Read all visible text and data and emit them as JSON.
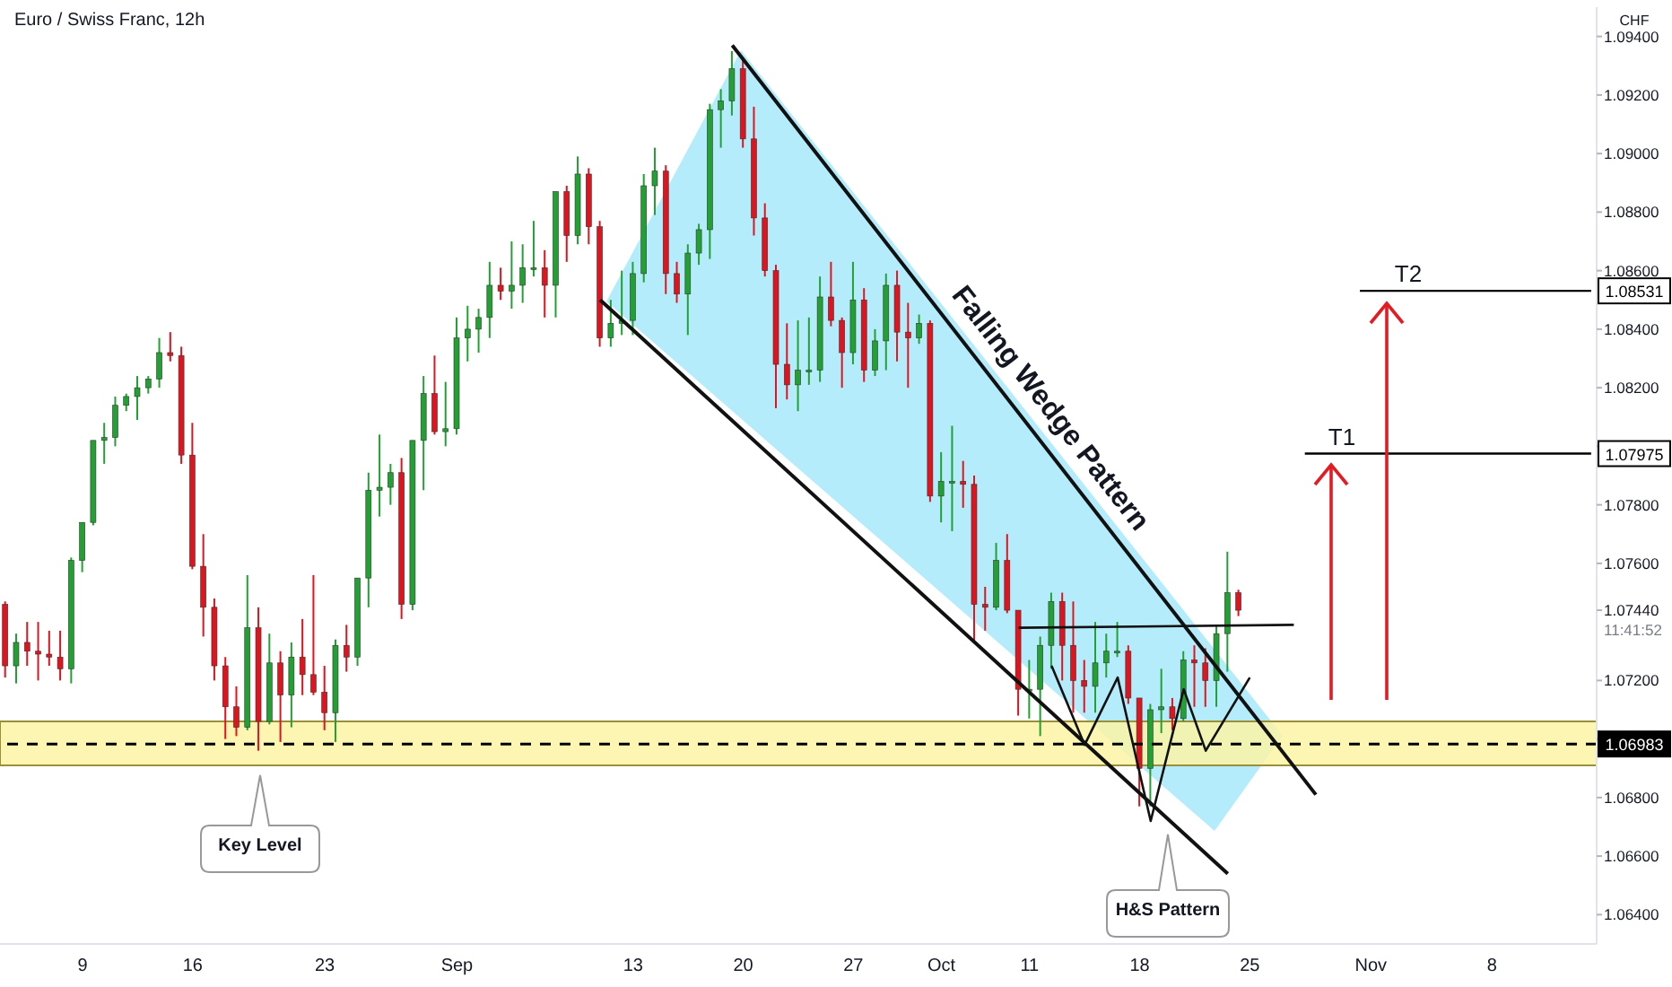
{
  "chart_data": {
    "type": "candlestick",
    "title": "Euro / Swiss Franc, 12h",
    "ylabel": "CHF",
    "categories": [
      null,
      null,
      null,
      null,
      null,
      null,
      null,
      "9",
      null,
      null,
      null,
      null,
      null,
      null,
      null,
      null,
      null,
      "16",
      null,
      null,
      null,
      null,
      null,
      null,
      null,
      null,
      null,
      null,
      null,
      "23",
      null,
      null,
      null,
      null,
      null,
      null,
      null,
      null,
      null,
      null,
      null,
      "Sep",
      null,
      null,
      null,
      null,
      null,
      null,
      null,
      null,
      null,
      null,
      null,
      null,
      null,
      null,
      null,
      "13",
      null,
      null,
      null,
      null,
      null,
      null,
      null,
      null,
      null,
      "20",
      null,
      null,
      null,
      null,
      null,
      null,
      null,
      null,
      null,
      "27",
      null,
      null,
      null,
      null,
      null,
      null,
      null,
      "Oct",
      null,
      null,
      null,
      null,
      null,
      null,
      null,
      "11",
      null,
      null,
      null,
      null,
      null,
      null,
      null,
      null,
      null,
      "18",
      null,
      null,
      null,
      null,
      null,
      null,
      null,
      null,
      null,
      "25",
      null,
      null,
      null,
      null,
      null,
      null,
      null,
      null,
      null,
      null,
      "Nov",
      null,
      null,
      null,
      null,
      null,
      null,
      null,
      null,
      null,
      null,
      "8",
      null,
      null,
      null,
      null,
      null,
      null,
      null,
      null,
      null
    ],
    "ohlc": [
      [
        1.0746,
        1.0747,
        1.0721,
        1.0725
      ],
      [
        1.0725,
        1.0736,
        1.0719,
        1.0733
      ],
      [
        1.0733,
        1.074,
        1.0725,
        1.073
      ],
      [
        1.073,
        1.074,
        1.072,
        1.0729
      ],
      [
        1.0729,
        1.0737,
        1.0725,
        1.0728
      ],
      [
        1.0728,
        1.0737,
        1.072,
        1.0724
      ],
      [
        1.0724,
        1.0762,
        1.0719,
        1.0761
      ],
      [
        1.0761,
        1.0774,
        1.0757,
        1.0774
      ],
      [
        1.0774,
        1.0802,
        1.0773,
        1.0802
      ],
      [
        1.0802,
        1.0808,
        1.0794,
        1.0803
      ],
      [
        1.0803,
        1.0817,
        1.08,
        1.0814
      ],
      [
        1.0814,
        1.0818,
        1.0812,
        1.0817
      ],
      [
        1.0817,
        1.0824,
        1.0809,
        1.082
      ],
      [
        1.082,
        1.0824,
        1.0818,
        1.0823
      ],
      [
        1.0823,
        1.0837,
        1.082,
        1.0832
      ],
      [
        1.0832,
        1.0839,
        1.0829,
        1.0831
      ],
      [
        1.0831,
        1.0834,
        1.0794,
        1.0797
      ],
      [
        1.0797,
        1.0808,
        1.0758,
        1.0759
      ],
      [
        1.0759,
        1.077,
        1.0735,
        1.0745
      ],
      [
        1.0745,
        1.0748,
        1.072,
        1.0725
      ],
      [
        1.0725,
        1.0728,
        1.07,
        1.0711
      ],
      [
        1.0711,
        1.0718,
        1.0701,
        1.0704
      ],
      [
        1.0704,
        1.0756,
        1.0703,
        1.0738
      ],
      [
        1.0738,
        1.0745,
        1.0696,
        1.0706
      ],
      [
        1.0706,
        1.0736,
        1.0705,
        1.0726
      ],
      [
        1.0726,
        1.073,
        1.0699,
        1.0715
      ],
      [
        1.0715,
        1.0733,
        1.0704,
        1.0728
      ],
      [
        1.0728,
        1.0741,
        1.0715,
        1.0722
      ],
      [
        1.0722,
        1.0756,
        1.0715,
        1.0716
      ],
      [
        1.0716,
        1.0725,
        1.0703,
        1.0709
      ],
      [
        1.0709,
        1.0734,
        1.0699,
        1.0732
      ],
      [
        1.0732,
        1.0739,
        1.0723,
        1.0728
      ],
      [
        1.0728,
        1.0755,
        1.0725,
        1.0755
      ],
      [
        1.0755,
        1.0791,
        1.0745,
        1.0785
      ],
      [
        1.0785,
        1.0804,
        1.0776,
        1.0786
      ],
      [
        1.0786,
        1.0794,
        1.078,
        1.0791
      ],
      [
        1.0791,
        1.0796,
        1.0741,
        1.0746
      ],
      [
        1.0746,
        1.0802,
        1.0744,
        1.0802
      ],
      [
        1.0802,
        1.0824,
        1.0785,
        1.0818
      ],
      [
        1.0818,
        1.0831,
        1.0804,
        1.0805
      ],
      [
        1.0805,
        1.0822,
        1.08,
        1.0806
      ],
      [
        1.0806,
        1.0844,
        1.0804,
        1.0837
      ],
      [
        1.0837,
        1.0848,
        1.0829,
        1.084
      ],
      [
        1.084,
        1.0847,
        1.0832,
        1.0844
      ],
      [
        1.0844,
        1.0863,
        1.0837,
        1.0855
      ],
      [
        1.0855,
        1.0861,
        1.085,
        1.0853
      ],
      [
        1.0853,
        1.087,
        1.0847,
        1.0855
      ],
      [
        1.0855,
        1.0869,
        1.0849,
        1.0861
      ],
      [
        1.0861,
        1.0877,
        1.0858,
        1.0861
      ],
      [
        1.0861,
        1.0867,
        1.0844,
        1.0855
      ],
      [
        1.0855,
        1.0887,
        1.0844,
        1.0887
      ],
      [
        1.0887,
        1.0889,
        1.0863,
        1.0872
      ],
      [
        1.0872,
        1.0899,
        1.0869,
        1.0893
      ],
      [
        1.0893,
        1.0895,
        1.0869,
        1.0875
      ],
      [
        1.0875,
        1.0877,
        1.0834,
        1.0837
      ],
      [
        1.0837,
        1.085,
        1.0834,
        1.0842
      ],
      [
        1.0842,
        1.086,
        1.0838,
        1.0843
      ],
      [
        1.0843,
        1.0863,
        1.0838,
        1.0859
      ],
      [
        1.0859,
        1.0893,
        1.0856,
        1.0889
      ],
      [
        1.0889,
        1.0902,
        1.0879,
        1.0894
      ],
      [
        1.0894,
        1.0896,
        1.0852,
        1.0859
      ],
      [
        1.0859,
        1.0863,
        1.0849,
        1.0852
      ],
      [
        1.0852,
        1.0869,
        1.0838,
        1.0866
      ],
      [
        1.0866,
        1.0876,
        1.0862,
        1.0874
      ],
      [
        1.0874,
        1.0917,
        1.0864,
        1.0915
      ],
      [
        1.0915,
        1.0922,
        1.0902,
        1.0918
      ],
      [
        1.0918,
        1.0935,
        1.0913,
        1.0929
      ],
      [
        1.0929,
        1.0933,
        1.0902,
        1.0905
      ],
      [
        1.0905,
        1.0916,
        1.0872,
        1.0878
      ],
      [
        1.0878,
        1.0883,
        1.0858,
        1.086
      ],
      [
        1.086,
        1.0862,
        1.0813,
        1.0828
      ],
      [
        1.0828,
        1.0842,
        1.0816,
        1.0821
      ],
      [
        1.0821,
        1.0843,
        1.0812,
        1.0826
      ],
      [
        1.0826,
        1.0844,
        1.0821,
        1.0826
      ],
      [
        1.0826,
        1.0858,
        1.0822,
        1.0851
      ],
      [
        1.0851,
        1.0863,
        1.0841,
        1.0843
      ],
      [
        1.0843,
        1.0844,
        1.082,
        1.0832
      ],
      [
        1.0832,
        1.0863,
        1.0828,
        1.085
      ],
      [
        1.085,
        1.0854,
        1.0822,
        1.0826
      ],
      [
        1.0826,
        1.084,
        1.0824,
        1.0836
      ],
      [
        1.0836,
        1.0859,
        1.0826,
        1.0855
      ],
      [
        1.0855,
        1.086,
        1.0829,
        1.0839
      ],
      [
        1.0839,
        1.0849,
        1.082,
        1.0837
      ],
      [
        1.0837,
        1.0845,
        1.0835,
        1.0842
      ],
      [
        1.0842,
        1.0843,
        1.0781,
        1.0783
      ],
      [
        1.0783,
        1.0798,
        1.0774,
        1.0788
      ],
      [
        1.0788,
        1.0807,
        1.0771,
        1.0788
      ],
      [
        1.0788,
        1.0795,
        1.0779,
        1.0787
      ],
      [
        1.0787,
        1.079,
        1.0733,
        1.0746
      ],
      [
        1.0746,
        1.0752,
        1.0737,
        1.0745
      ],
      [
        1.0745,
        1.0767,
        1.0744,
        1.0761
      ],
      [
        1.0761,
        1.077,
        1.0743,
        1.0744
      ],
      [
        1.0744,
        1.0744,
        1.0708,
        1.0717
      ],
      [
        1.0717,
        1.0727,
        1.0707,
        1.0717
      ],
      [
        1.0717,
        1.0735,
        1.0701,
        1.0732
      ],
      [
        1.0732,
        1.075,
        1.0724,
        1.0747
      ],
      [
        1.0747,
        1.075,
        1.072,
        1.0732
      ],
      [
        1.0732,
        1.0747,
        1.0709,
        1.072
      ],
      [
        1.072,
        1.0727,
        1.0709,
        1.0718
      ],
      [
        1.0718,
        1.074,
        1.0709,
        1.0726
      ],
      [
        1.0726,
        1.0736,
        1.0721,
        1.073
      ],
      [
        1.073,
        1.074,
        1.0728,
        1.073
      ],
      [
        1.073,
        1.0732,
        1.0712,
        1.0714
      ],
      [
        1.0714,
        1.0714,
        1.0677,
        1.069
      ],
      [
        1.069,
        1.0712,
        1.0677,
        1.071
      ],
      [
        1.071,
        1.0724,
        1.0702,
        1.0711
      ],
      [
        1.0711,
        1.0714,
        1.0703,
        1.0707
      ],
      [
        1.0707,
        1.073,
        1.0706,
        1.0727
      ],
      [
        1.0727,
        1.0732,
        1.0711,
        1.0726
      ],
      [
        1.0726,
        1.0731,
        1.0711,
        1.072
      ],
      [
        1.072,
        1.0739,
        1.0711,
        1.0736
      ],
      [
        1.0736,
        1.0764,
        1.0723,
        1.075
      ],
      [
        1.075,
        1.0751,
        1.0742,
        1.0744
      ],
      null,
      null,
      null,
      null,
      null,
      null,
      null,
      null,
      null,
      null,
      null,
      null,
      null,
      null,
      null,
      null,
      null,
      null,
      null,
      null,
      null,
      null,
      null,
      null,
      null,
      null,
      null,
      null,
      null,
      null,
      null,
      null
    ],
    "colors": [
      "#e0141e",
      "#22a133",
      "#e0141e",
      "#e0141e",
      "#e0141e",
      "#e0141e",
      "#22a133",
      "#22a133",
      "#22a133",
      "#22a133",
      "#22a133",
      "#22a133",
      "#22a133",
      "#22a133",
      "#22a133",
      "#e0141e",
      "#e0141e",
      "#e0141e",
      "#e0141e",
      "#e0141e",
      "#e0141e",
      "#e0141e",
      "#22a133",
      "#e0141e",
      "#22a133",
      "#e0141e",
      "#22a133",
      "#e0141e",
      "#e0141e",
      "#e0141e",
      "#22a133",
      "#e0141e",
      "#22a133",
      "#22a133",
      "#22a133",
      "#22a133",
      "#e0141e",
      "#22a133",
      "#22a133",
      "#e0141e",
      "#22a133",
      "#22a133",
      "#22a133",
      "#22a133",
      "#22a133",
      "#e0141e",
      "#22a133",
      "#22a133",
      "#22a133",
      "#e0141e",
      "#22a133",
      "#e0141e",
      "#22a133",
      "#e0141e",
      "#e0141e",
      "#22a133",
      "#22a133",
      "#22a133",
      "#22a133",
      "#22a133",
      "#e0141e",
      "#e0141e",
      "#22a133",
      "#22a133",
      "#22a133",
      "#22a133",
      "#22a133",
      "#e0141e",
      "#e0141e",
      "#e0141e",
      "#e0141e",
      "#e0141e",
      "#22a133",
      "#22a133",
      "#22a133",
      "#e0141e",
      "#e0141e",
      "#22a133",
      "#e0141e",
      "#22a133",
      "#22a133",
      "#e0141e",
      "#e0141e",
      "#22a133",
      "#e0141e",
      "#22a133",
      "#22a133",
      "#e0141e",
      "#e0141e",
      "#e0141e",
      "#22a133",
      "#e0141e",
      "#e0141e",
      "#22a133",
      "#22a133",
      "#22a133",
      "#e0141e",
      "#e0141e",
      "#e0141e",
      "#22a133",
      "#22a133",
      "#22a133",
      "#e0141e",
      "#e0141e",
      "#22a133",
      "#22a133",
      "#e0141e",
      "#22a133",
      "#e0141e",
      "#e0141e",
      "#22a133",
      "#22a133",
      "#e0141e",
      null,
      null,
      null,
      null,
      null,
      null,
      null,
      null,
      null,
      null,
      null,
      null,
      null,
      null,
      null,
      null,
      null,
      null,
      null,
      null,
      null,
      null,
      null,
      null,
      null,
      null,
      null,
      null,
      null,
      null,
      null,
      null
    ],
    "ylim": [
      1.063,
      1.095
    ],
    "yticks": [
      {
        "value": 1.064,
        "label": "1.06400"
      },
      {
        "value": 1.066,
        "label": "1.06600"
      },
      {
        "value": 1.068,
        "label": "1.06800"
      },
      {
        "value": 1.07,
        "label": null
      },
      {
        "value": 1.072,
        "label": "1.07200"
      },
      {
        "value": 1.0744,
        "label": "1.07440"
      },
      {
        "value": 1.076,
        "label": "1.07600"
      },
      {
        "value": 1.078,
        "label": "1.07800"
      },
      {
        "value": 1.08,
        "label": null
      },
      {
        "value": 1.082,
        "label": "1.08200"
      },
      {
        "value": 1.084,
        "label": "1.08400"
      },
      {
        "value": 1.086,
        "label": "1.08600"
      },
      {
        "value": 1.088,
        "label": "1.08800"
      },
      {
        "value": 1.09,
        "label": "1.09000"
      },
      {
        "value": 1.092,
        "label": "1.09200"
      },
      {
        "value": 1.094,
        "label": "1.09400"
      }
    ],
    "series": [
      {
        "type": "line",
        "color": "#111111",
        "values": [
          null,
          null,
          null,
          null,
          null,
          null,
          null,
          null,
          null,
          null,
          null,
          null,
          null,
          null,
          null,
          null,
          null,
          null,
          null,
          null,
          null,
          null,
          null,
          null,
          null,
          null,
          null,
          null,
          null,
          null,
          null,
          null,
          null,
          null,
          null,
          null,
          null,
          null,
          null,
          null,
          null,
          null,
          null,
          null,
          null,
          null,
          null,
          null,
          null,
          null,
          null,
          null,
          null,
          null,
          null,
          null,
          null,
          null,
          null,
          null,
          null,
          null,
          null,
          null,
          null,
          null,
          1.0937,
          null,
          null,
          null,
          null,
          null,
          null,
          null,
          null,
          null,
          null,
          null,
          null,
          null,
          null,
          null,
          null,
          null,
          null,
          null,
          null,
          null,
          null,
          null,
          null,
          null,
          null,
          null,
          null,
          null,
          null,
          null,
          null,
          null,
          null,
          null,
          null,
          null,
          null,
          null,
          null,
          null,
          null,
          null,
          null,
          null,
          null,
          null,
          null,
          null,
          null,
          null,
          null,
          1.0681,
          null,
          null,
          null,
          null,
          null,
          null,
          null,
          null,
          null,
          null,
          null,
          null,
          null,
          null,
          null,
          null,
          null,
          null,
          null,
          null,
          null,
          null,
          null,
          null,
          null
        ]
      },
      {
        "type": "line",
        "color": "#111111",
        "values": [
          null,
          null,
          null,
          null,
          null,
          null,
          null,
          null,
          null,
          null,
          null,
          null,
          null,
          null,
          null,
          null,
          null,
          null,
          null,
          null,
          null,
          null,
          null,
          null,
          null,
          null,
          null,
          null,
          null,
          null,
          null,
          null,
          null,
          null,
          null,
          null,
          null,
          null,
          null,
          null,
          null,
          null,
          null,
          null,
          null,
          null,
          null,
          null,
          null,
          null,
          null,
          null,
          null,
          null,
          1.085,
          null,
          null,
          null,
          null,
          null,
          null,
          null,
          null,
          null,
          null,
          null,
          null,
          null,
          null,
          null,
          null,
          null,
          null,
          null,
          null,
          null,
          null,
          null,
          null,
          null,
          null,
          null,
          null,
          null,
          null,
          null,
          null,
          null,
          null,
          null,
          null,
          null,
          null,
          null,
          null,
          null,
          null,
          null,
          null,
          null,
          null,
          null,
          null,
          null,
          null,
          null,
          null,
          null,
          null,
          null,
          null,
          1.0654,
          null,
          null,
          null,
          null,
          null,
          null,
          null,
          null,
          null,
          null,
          null,
          null,
          null,
          null,
          null,
          null,
          null,
          null,
          null,
          null,
          null,
          null,
          null,
          null,
          null,
          null,
          null,
          null,
          null,
          null,
          null,
          null,
          null
        ]
      },
      {
        "type": "line",
        "color": "#111111",
        "values": [
          null,
          null,
          null,
          null,
          null,
          null,
          null,
          null,
          null,
          null,
          null,
          null,
          null,
          null,
          null,
          null,
          null,
          null,
          null,
          null,
          null,
          null,
          null,
          null,
          null,
          null,
          null,
          null,
          null,
          null,
          null,
          null,
          null,
          null,
          null,
          null,
          null,
          null,
          null,
          null,
          null,
          null,
          null,
          null,
          null,
          null,
          null,
          null,
          null,
          null,
          null,
          null,
          null,
          null,
          null,
          null,
          null,
          null,
          null,
          null,
          null,
          null,
          null,
          null,
          null,
          null,
          null,
          null,
          null,
          null,
          null,
          null,
          null,
          null,
          null,
          null,
          null,
          null,
          null,
          null,
          null,
          null,
          null,
          null,
          null,
          null,
          null,
          null,
          null,
          null,
          null,
          null,
          1.0738,
          null,
          null,
          null,
          null,
          null,
          null,
          null,
          null,
          null,
          null,
          null,
          null,
          null,
          null,
          null,
          null,
          null,
          null,
          null,
          null,
          null,
          null,
          null,
          null,
          1.0739,
          null,
          null,
          null,
          null,
          null,
          null,
          null,
          null,
          null,
          null,
          null,
          null,
          null,
          null,
          null,
          null,
          null,
          null,
          null,
          null,
          null,
          null,
          null,
          null,
          null,
          null,
          null
        ]
      },
      {
        "type": "line",
        "color": "#111111",
        "values": [
          null,
          null,
          null,
          null,
          null,
          null,
          null,
          null,
          null,
          null,
          null,
          null,
          null,
          null,
          null,
          null,
          null,
          null,
          null,
          null,
          null,
          null,
          null,
          null,
          null,
          null,
          null,
          null,
          null,
          null,
          null,
          null,
          null,
          null,
          null,
          null,
          null,
          null,
          null,
          null,
          null,
          null,
          null,
          null,
          null,
          null,
          null,
          null,
          null,
          null,
          null,
          null,
          null,
          null,
          null,
          null,
          null,
          null,
          null,
          null,
          null,
          null,
          null,
          null,
          null,
          null,
          null,
          null,
          null,
          null,
          null,
          null,
          null,
          null,
          null,
          null,
          null,
          null,
          null,
          null,
          null,
          null,
          null,
          null,
          null,
          null,
          null,
          null,
          null,
          null,
          null,
          null,
          null,
          null,
          null,
          1.0725,
          null,
          null,
          1.0698,
          null,
          null,
          1.0721,
          null,
          null,
          1.0672,
          null,
          null,
          1.0717,
          null,
          1.0696,
          null,
          null,
          null,
          1.0721,
          null,
          null,
          null,
          null,
          null,
          null,
          null,
          null,
          null,
          null,
          null,
          null,
          null,
          null,
          null,
          null,
          null,
          null,
          null,
          null,
          null,
          null,
          null,
          null,
          null,
          null,
          null,
          null,
          null,
          null,
          null
        ]
      }
    ],
    "bands": [
      {
        "axis": "y",
        "from": 1.0691,
        "to": 1.0706,
        "color": "#fbf5a4"
      }
    ],
    "ref_lines": [
      {
        "axis": "y",
        "value": 1.06983,
        "label": "1.06983",
        "line_style": "dashed",
        "color": "#000000"
      },
      {
        "axis": "y",
        "value": 1.07975,
        "label": "1.07975",
        "line_style": "solid",
        "color": "#000000"
      },
      {
        "axis": "y",
        "value": 1.08531,
        "label": "1.08531",
        "line_style": "solid",
        "color": "#000000"
      }
    ],
    "annotations": [
      "Falling Wedge Pattern",
      "Key Level",
      "H&S Pattern",
      {
        "text": "T1",
        "y": 1.07975
      },
      {
        "text": "T2",
        "y": 1.08531
      },
      "11:41:52"
    ]
  }
}
